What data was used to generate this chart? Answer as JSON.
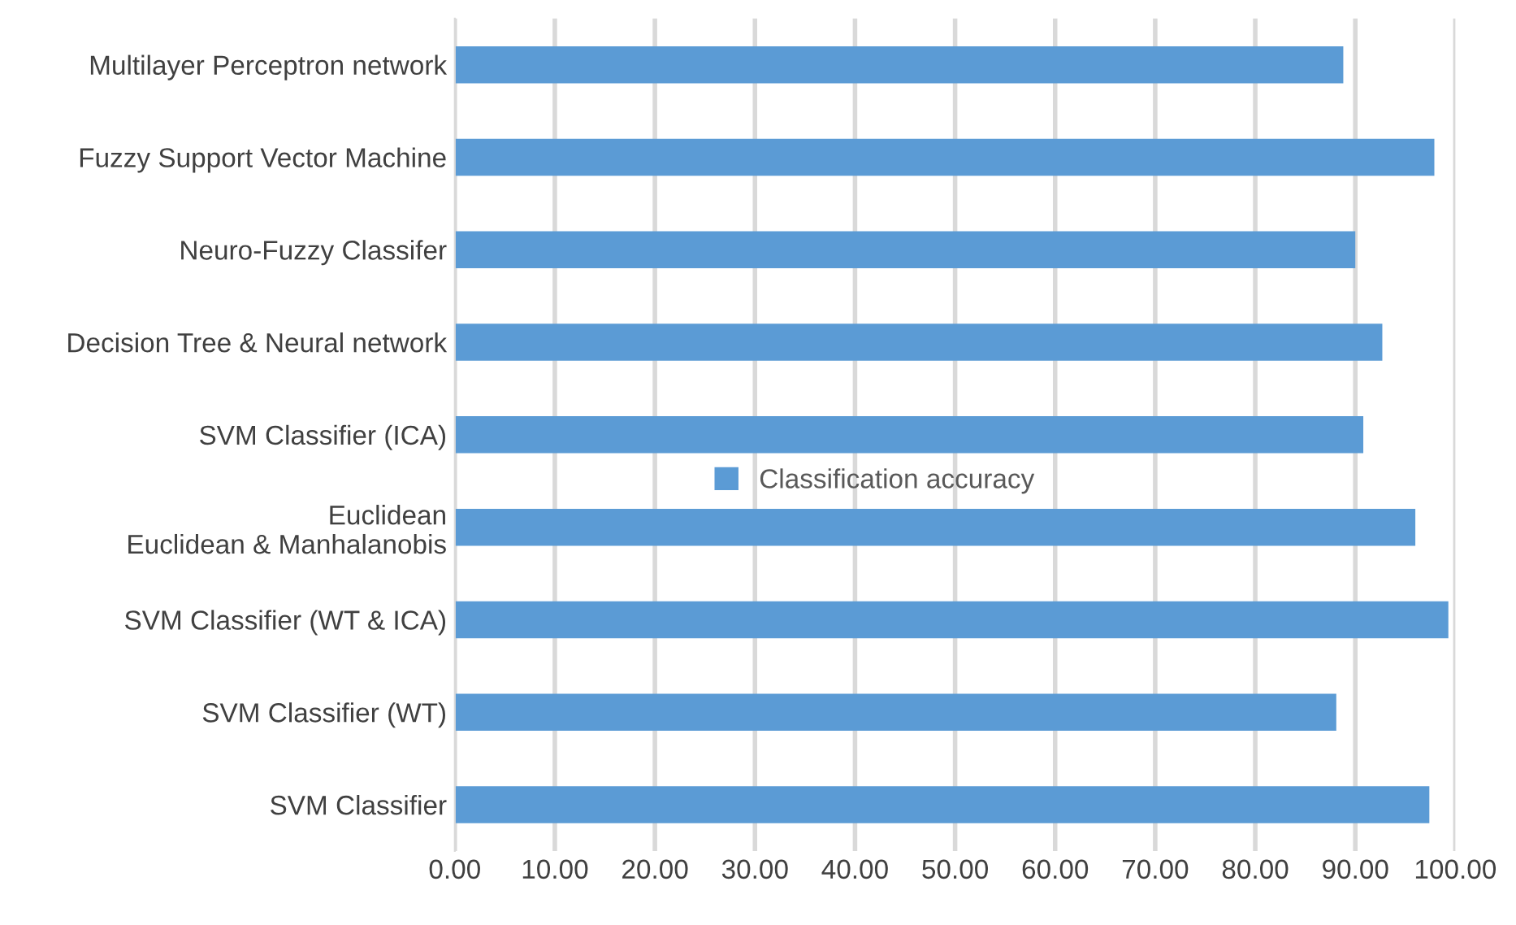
{
  "chart_data": {
    "type": "bar",
    "orientation": "horizontal",
    "categories": [
      "Multilayer Perceptron network",
      "Fuzzy Support Vector Machine",
      "Neuro-Fuzzy Classifer",
      "Decision Tree & Neural network",
      "SVM Classifier (ICA)",
      "Euclidean\nEuclidean & Manhalanobis",
      "SVM Classifier (WT & ICA)",
      "SVM Classifier (WT)",
      "SVM Classifier"
    ],
    "series": [
      {
        "name": "Classification accuracy",
        "color": "#5b9bd5",
        "values": [
          88.8,
          97.9,
          90.0,
          92.7,
          90.8,
          96.0,
          99.3,
          88.1,
          97.4
        ]
      }
    ],
    "xlim": [
      0,
      100
    ],
    "xticks": [
      {
        "value": 0,
        "label": "0.00"
      },
      {
        "value": 10,
        "label": "10.00"
      },
      {
        "value": 20,
        "label": "20.00"
      },
      {
        "value": 30,
        "label": "30.00"
      },
      {
        "value": 40,
        "label": "40.00"
      },
      {
        "value": 50,
        "label": "50.00"
      },
      {
        "value": 60,
        "label": "60.00"
      },
      {
        "value": 70,
        "label": "70.00"
      },
      {
        "value": 80,
        "label": "80.00"
      },
      {
        "value": 90,
        "label": "90.00"
      },
      {
        "value": 100,
        "label": "100.00"
      }
    ],
    "grid": "x",
    "legend": "center"
  }
}
